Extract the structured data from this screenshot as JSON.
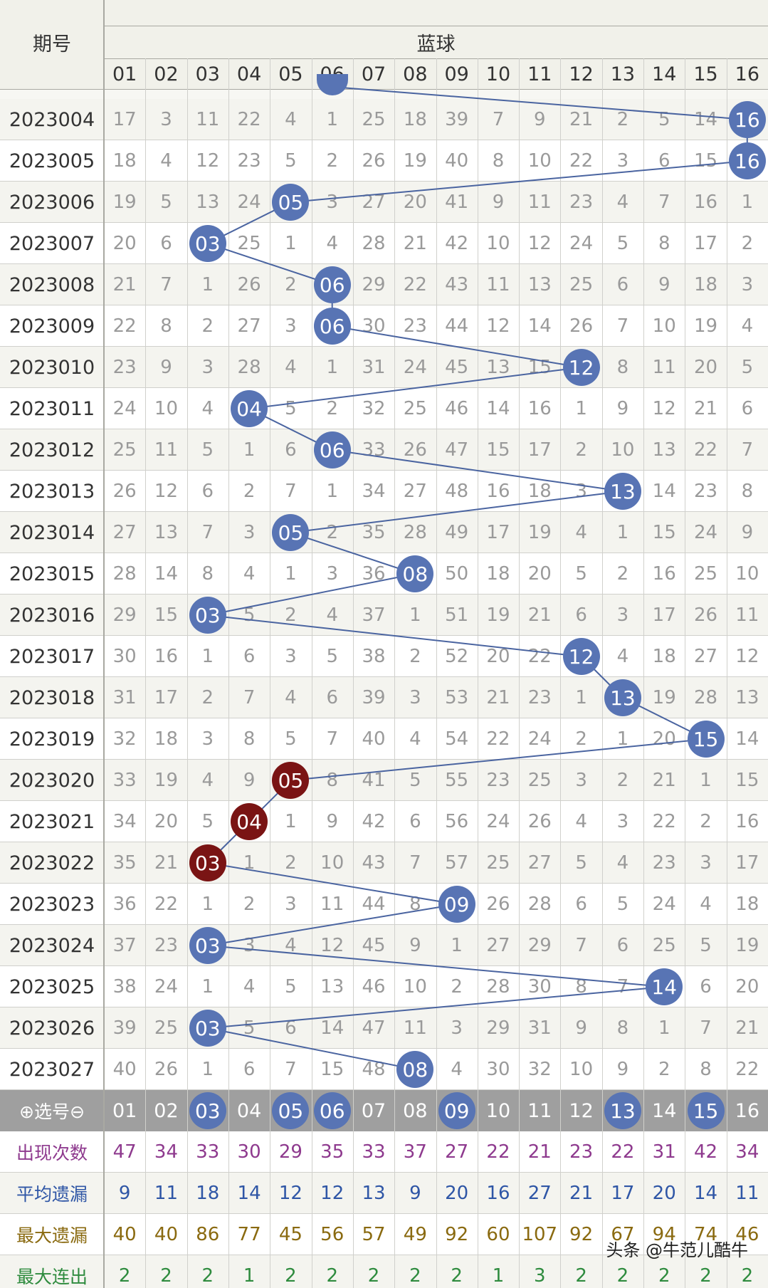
{
  "header": {
    "period_label": "期号",
    "section_label": "蓝球",
    "columns": [
      "01",
      "02",
      "03",
      "04",
      "05",
      "06",
      "07",
      "08",
      "09",
      "10",
      "11",
      "12",
      "13",
      "14",
      "15",
      "16"
    ]
  },
  "partial_top_row": {
    "hit_col": "06"
  },
  "rows": [
    {
      "period": "2023004",
      "cells": [
        "17",
        "3",
        "11",
        "22",
        "4",
        "1",
        "25",
        "18",
        "39",
        "7",
        "9",
        "21",
        "2",
        "5",
        "14",
        "16"
      ],
      "hit": 16
    },
    {
      "period": "2023005",
      "cells": [
        "18",
        "4",
        "12",
        "23",
        "5",
        "2",
        "26",
        "19",
        "40",
        "8",
        "10",
        "22",
        "3",
        "6",
        "15",
        "16"
      ],
      "hit": 16
    },
    {
      "period": "2023006",
      "cells": [
        "19",
        "5",
        "13",
        "24",
        "05",
        "3",
        "27",
        "20",
        "41",
        "9",
        "11",
        "23",
        "4",
        "7",
        "16",
        "1"
      ],
      "hit": 5
    },
    {
      "period": "2023007",
      "cells": [
        "20",
        "6",
        "03",
        "25",
        "1",
        "4",
        "28",
        "21",
        "42",
        "10",
        "12",
        "24",
        "5",
        "8",
        "17",
        "2"
      ],
      "hit": 3
    },
    {
      "period": "2023008",
      "cells": [
        "21",
        "7",
        "1",
        "26",
        "2",
        "06",
        "29",
        "22",
        "43",
        "11",
        "13",
        "25",
        "6",
        "9",
        "18",
        "3"
      ],
      "hit": 6
    },
    {
      "period": "2023009",
      "cells": [
        "22",
        "8",
        "2",
        "27",
        "3",
        "06",
        "30",
        "23",
        "44",
        "12",
        "14",
        "26",
        "7",
        "10",
        "19",
        "4"
      ],
      "hit": 6
    },
    {
      "period": "2023010",
      "cells": [
        "23",
        "9",
        "3",
        "28",
        "4",
        "1",
        "31",
        "24",
        "45",
        "13",
        "15",
        "12",
        "8",
        "11",
        "20",
        "5"
      ],
      "hit": 12
    },
    {
      "period": "2023011",
      "cells": [
        "24",
        "10",
        "4",
        "04",
        "5",
        "2",
        "32",
        "25",
        "46",
        "14",
        "16",
        "1",
        "9",
        "12",
        "21",
        "6"
      ],
      "hit": 4
    },
    {
      "period": "2023012",
      "cells": [
        "25",
        "11",
        "5",
        "1",
        "6",
        "06",
        "33",
        "26",
        "47",
        "15",
        "17",
        "2",
        "10",
        "13",
        "22",
        "7"
      ],
      "hit": 6
    },
    {
      "period": "2023013",
      "cells": [
        "26",
        "12",
        "6",
        "2",
        "7",
        "1",
        "34",
        "27",
        "48",
        "16",
        "18",
        "3",
        "13",
        "14",
        "23",
        "8"
      ],
      "hit": 13
    },
    {
      "period": "2023014",
      "cells": [
        "27",
        "13",
        "7",
        "3",
        "05",
        "2",
        "35",
        "28",
        "49",
        "17",
        "19",
        "4",
        "1",
        "15",
        "24",
        "9"
      ],
      "hit": 5
    },
    {
      "period": "2023015",
      "cells": [
        "28",
        "14",
        "8",
        "4",
        "1",
        "3",
        "36",
        "08",
        "50",
        "18",
        "20",
        "5",
        "2",
        "16",
        "25",
        "10"
      ],
      "hit": 8
    },
    {
      "period": "2023016",
      "cells": [
        "29",
        "15",
        "03",
        "5",
        "2",
        "4",
        "37",
        "1",
        "51",
        "19",
        "21",
        "6",
        "3",
        "17",
        "26",
        "11"
      ],
      "hit": 3
    },
    {
      "period": "2023017",
      "cells": [
        "30",
        "16",
        "1",
        "6",
        "3",
        "5",
        "38",
        "2",
        "52",
        "20",
        "22",
        "12",
        "4",
        "18",
        "27",
        "12"
      ],
      "hit": 12
    },
    {
      "period": "2023018",
      "cells": [
        "31",
        "17",
        "2",
        "7",
        "4",
        "6",
        "39",
        "3",
        "53",
        "21",
        "23",
        "1",
        "13",
        "19",
        "28",
        "13"
      ],
      "hit": 13
    },
    {
      "period": "2023019",
      "cells": [
        "32",
        "18",
        "3",
        "8",
        "5",
        "7",
        "40",
        "4",
        "54",
        "22",
        "24",
        "2",
        "1",
        "20",
        "15",
        "14"
      ],
      "hit": 15
    },
    {
      "period": "2023020",
      "cells": [
        "33",
        "19",
        "4",
        "9",
        "05",
        "8",
        "41",
        "5",
        "55",
        "23",
        "25",
        "3",
        "2",
        "21",
        "1",
        "15"
      ],
      "hit": 5,
      "hot": true
    },
    {
      "period": "2023021",
      "cells": [
        "34",
        "20",
        "5",
        "04",
        "1",
        "9",
        "42",
        "6",
        "56",
        "24",
        "26",
        "4",
        "3",
        "22",
        "2",
        "16"
      ],
      "hit": 4,
      "hot": true
    },
    {
      "period": "2023022",
      "cells": [
        "35",
        "21",
        "03",
        "1",
        "2",
        "10",
        "43",
        "7",
        "57",
        "25",
        "27",
        "5",
        "4",
        "23",
        "3",
        "17"
      ],
      "hit": 3,
      "hot": true
    },
    {
      "period": "2023023",
      "cells": [
        "36",
        "22",
        "1",
        "2",
        "3",
        "11",
        "44",
        "8",
        "09",
        "26",
        "28",
        "6",
        "5",
        "24",
        "4",
        "18"
      ],
      "hit": 9
    },
    {
      "period": "2023024",
      "cells": [
        "37",
        "23",
        "03",
        "3",
        "4",
        "12",
        "45",
        "9",
        "1",
        "27",
        "29",
        "7",
        "6",
        "25",
        "5",
        "19"
      ],
      "hit": 3
    },
    {
      "period": "2023025",
      "cells": [
        "38",
        "24",
        "1",
        "4",
        "5",
        "13",
        "46",
        "10",
        "2",
        "28",
        "30",
        "8",
        "7",
        "14",
        "6",
        "20"
      ],
      "hit": 14
    },
    {
      "period": "2023026",
      "cells": [
        "39",
        "25",
        "03",
        "5",
        "6",
        "14",
        "47",
        "11",
        "3",
        "29",
        "31",
        "9",
        "8",
        "1",
        "7",
        "21"
      ],
      "hit": 3
    },
    {
      "period": "2023027",
      "cells": [
        "40",
        "26",
        "1",
        "6",
        "7",
        "15",
        "48",
        "08",
        "4",
        "30",
        "32",
        "10",
        "9",
        "2",
        "8",
        "22"
      ],
      "hit": 8
    }
  ],
  "select_row": {
    "label": "⊕选号⊖",
    "numbers": [
      "01",
      "02",
      "03",
      "04",
      "05",
      "06",
      "07",
      "08",
      "09",
      "10",
      "11",
      "12",
      "13",
      "14",
      "15",
      "16"
    ],
    "selected": [
      3,
      5,
      6,
      9,
      13,
      15
    ]
  },
  "stats": [
    {
      "label": "出现次数",
      "values": [
        "47",
        "34",
        "33",
        "30",
        "29",
        "35",
        "33",
        "37",
        "27",
        "22",
        "21",
        "23",
        "22",
        "31",
        "42",
        "34"
      ],
      "color": "#8e3a8e"
    },
    {
      "label": "平均遗漏",
      "values": [
        "9",
        "11",
        "18",
        "14",
        "12",
        "12",
        "13",
        "9",
        "20",
        "16",
        "27",
        "21",
        "17",
        "20",
        "14",
        "11"
      ],
      "color": "#2f56a6"
    },
    {
      "label": "最大遗漏",
      "values": [
        "40",
        "40",
        "86",
        "77",
        "45",
        "56",
        "57",
        "49",
        "92",
        "60",
        "107",
        "92",
        "67",
        "94",
        "74",
        "46"
      ],
      "color": "#8a6a10"
    },
    {
      "label": "最大连出",
      "values": [
        "2",
        "2",
        "2",
        "1",
        "2",
        "2",
        "2",
        "2",
        "2",
        "1",
        "3",
        "2",
        "2",
        "2",
        "2",
        "2"
      ],
      "color": "#2e8b3e"
    }
  ],
  "watermark": "头条 @牛范儿酷牛",
  "colors": {
    "ball_blue": "#5874b4",
    "ball_red": "#7a1414",
    "line": "#4a64a0",
    "header_bg": "#f1f1ea",
    "select_bg": "#9f9f9f",
    "cell_text": "#9a9a9a",
    "period_text": "#333333"
  }
}
